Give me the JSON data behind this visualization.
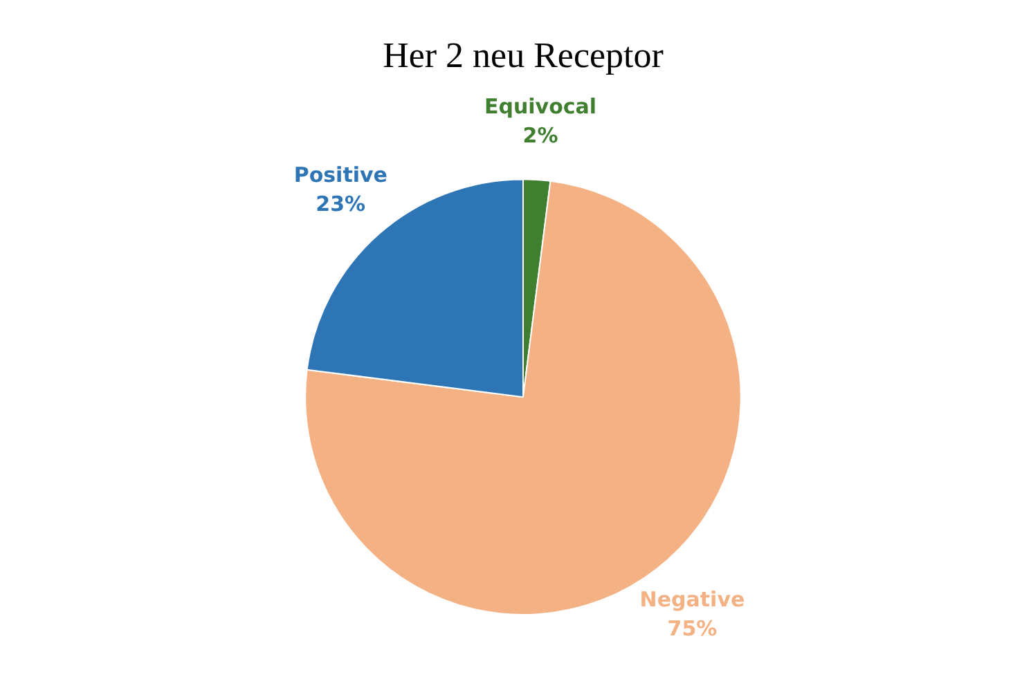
{
  "chart_data": {
    "type": "pie",
    "title": "Her 2 neu Receptor",
    "categories": [
      "Equivocal",
      "Negative",
      "Positive"
    ],
    "values": [
      2,
      75,
      23
    ],
    "value_labels": [
      "2%",
      "75%",
      "23%"
    ],
    "colors": [
      "#3f7f2f",
      "#f4b183",
      "#2e75b6"
    ],
    "legend": false
  }
}
